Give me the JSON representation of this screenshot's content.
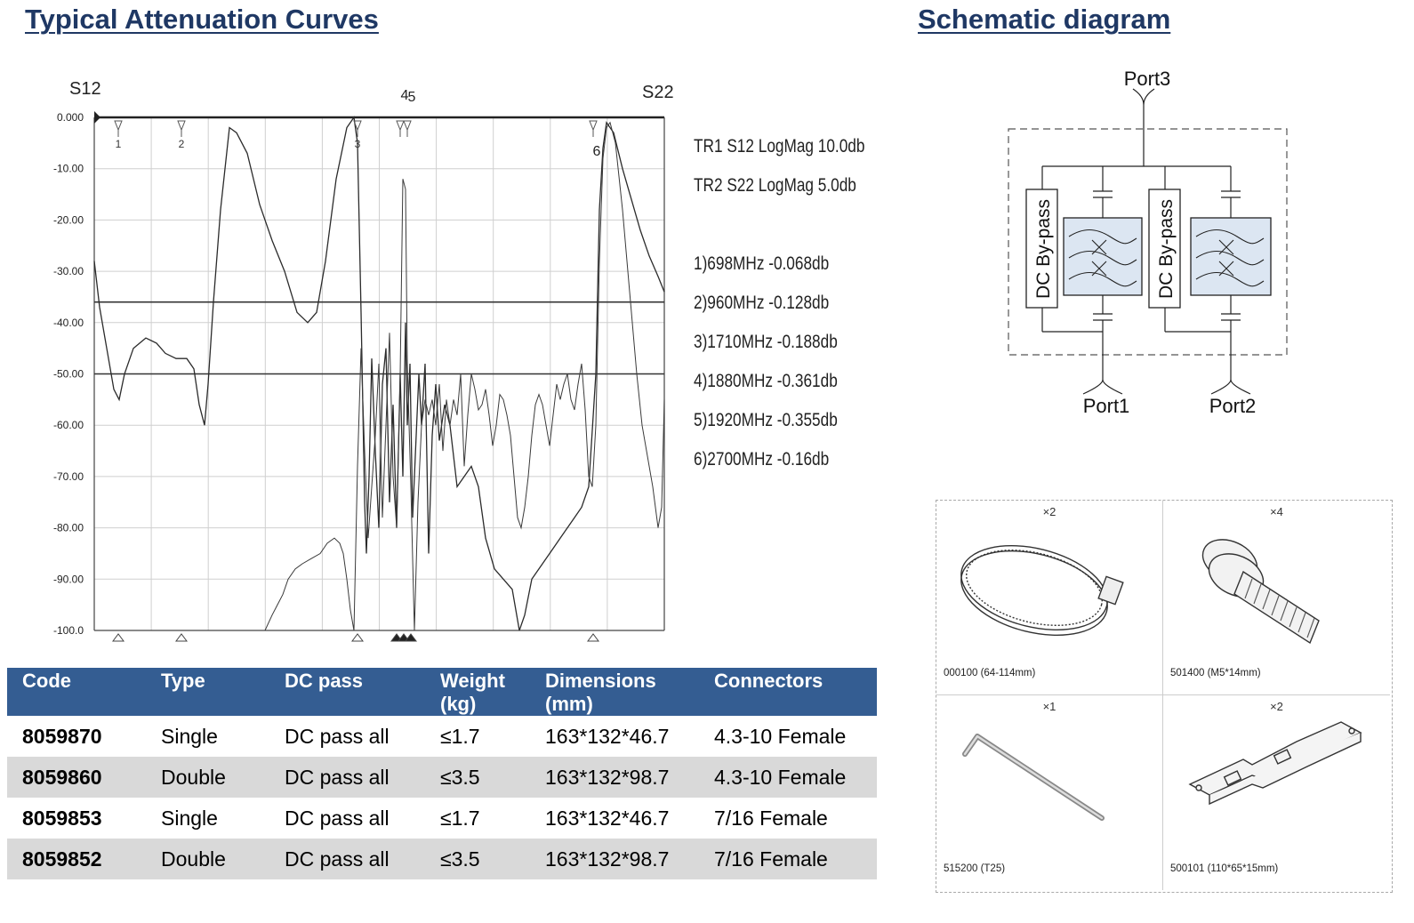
{
  "headings": {
    "attenuation": "Typical Attenuation Curves",
    "schematic": "Schematic diagram"
  },
  "chart_data": {
    "type": "line",
    "top_left_label": "S12",
    "top_right_label": "S22",
    "y_ticks": [
      "0.000",
      "-10.00",
      "-20.00",
      "-30.00",
      "-40.00",
      "-50.00",
      "-60.00",
      "-70.00",
      "-80.00",
      "-90.00",
      "-100.0"
    ],
    "ylim": [
      -100,
      0
    ],
    "grid": true,
    "traces": [
      "TR1 S12 LogMag 10.0db",
      "TR2 S22 LogMag 5.0db"
    ],
    "markers": [
      {
        "id": "1",
        "label": "1)698MHz   -0.068db"
      },
      {
        "id": "2",
        "label": "2)960MHz   -0.128db"
      },
      {
        "id": "3",
        "label": "3)1710MHz  -0.188db"
      },
      {
        "id": "4",
        "label": "4)1880MHz  -0.361db"
      },
      {
        "id": "5",
        "label": "5)1920MHz  -0.355db"
      },
      {
        "id": "6",
        "label": "6)2700MHz  -0.16db"
      }
    ],
    "marker_top_labels": [
      "4",
      "5",
      "6"
    ]
  },
  "schematic": {
    "port3": "Port3",
    "port1": "Port1",
    "port2": "Port2",
    "bypass_label": "DC By-pass"
  },
  "accessories": [
    {
      "qty": "×2",
      "caption": "000100 (64-114mm)",
      "icon": "hose-clamp-icon"
    },
    {
      "qty": "×4",
      "caption": "501400 (M5*14mm)",
      "icon": "bolt-icon"
    },
    {
      "qty": "×1",
      "caption": "515200 (T25)",
      "icon": "torx-key-icon"
    },
    {
      "qty": "×2",
      "caption": "500101 (110*65*15mm)",
      "icon": "bracket-icon"
    }
  ],
  "table": {
    "headers": [
      "Code",
      "Type",
      "DC pass",
      "Weight\n(kg)",
      "Dimensions\n(mm)",
      "Connectors"
    ],
    "rows": [
      [
        "8059870",
        "Single",
        "DC pass all",
        "≤1.7",
        "163*132*46.7",
        "4.3-10 Female"
      ],
      [
        "8059860",
        "Double",
        "DC pass all",
        "≤3.5",
        "163*132*98.7",
        "4.3-10 Female"
      ],
      [
        "8059853",
        "Single",
        "DC pass all",
        "≤1.7",
        "163*132*46.7",
        "7/16 Female"
      ],
      [
        "8059852",
        "Double",
        "DC pass all",
        "≤3.5",
        "163*132*98.7",
        "7/16 Female"
      ]
    ]
  }
}
